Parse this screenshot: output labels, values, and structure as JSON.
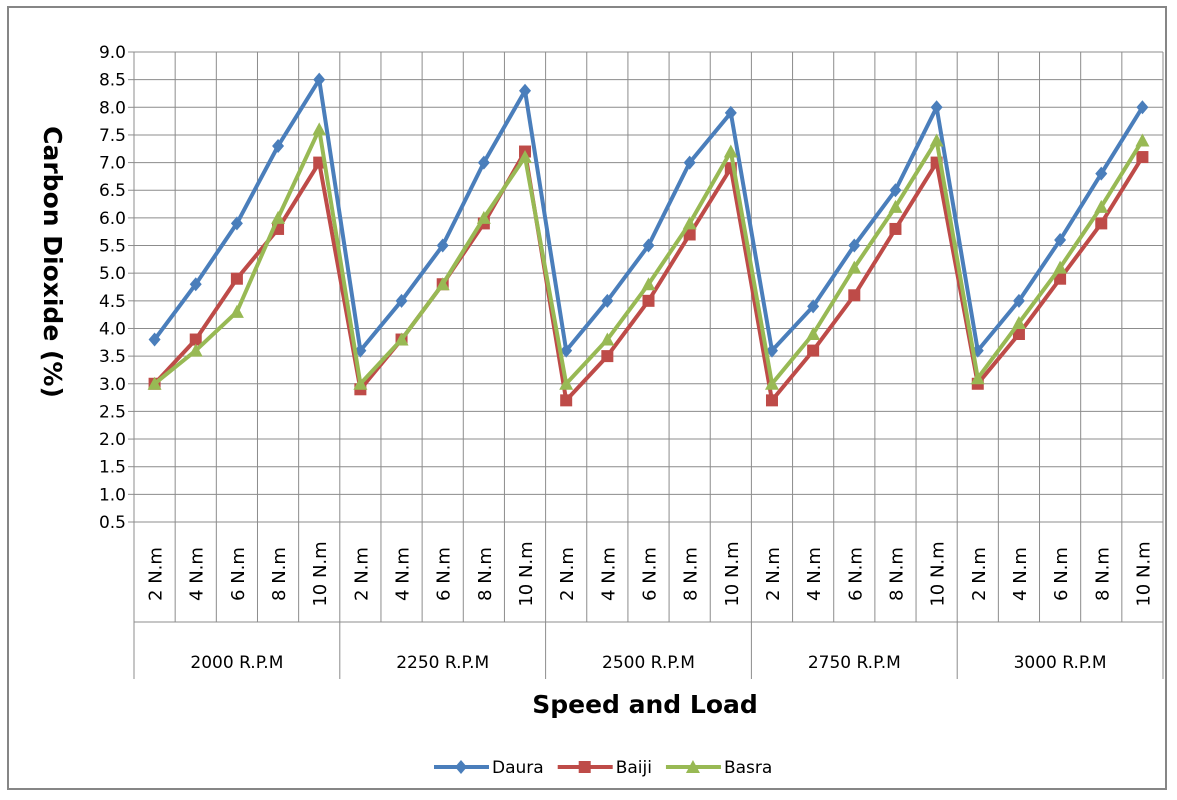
{
  "chart_data": {
    "type": "line",
    "xlabel": "Speed and Load",
    "ylabel": "Carbon Dioxide  (%)",
    "ylim": [
      0.5,
      9.0
    ],
    "ytick_step": 0.5,
    "grid": true,
    "legend_position": "bottom",
    "groups": [
      {
        "label": "2000 R.P.M",
        "categories": [
          "2 N.m",
          "4 N.m",
          "6 N.m",
          "8 N.m",
          "10 N.m"
        ]
      },
      {
        "label": "2250 R.P.M",
        "categories": [
          "2 N.m",
          "4 N.m",
          "6 N.m",
          "8 N.m",
          "10 N.m"
        ]
      },
      {
        "label": "2500 R.P.M",
        "categories": [
          "2 N.m",
          "4 N.m",
          "6 N.m",
          "8 N.m",
          "10 N.m"
        ]
      },
      {
        "label": "2750 R.P.M",
        "categories": [
          "2 N.m",
          "4 N.m",
          "6 N.m",
          "8 N.m",
          "10 N.m"
        ]
      },
      {
        "label": "3000 R.P.M",
        "categories": [
          "2 N.m",
          "4 N.m",
          "6 N.m",
          "8 N.m",
          "10 N.m"
        ]
      }
    ],
    "series": [
      {
        "name": "Daura",
        "color": "#4A7EBB",
        "marker": "diamond",
        "values": [
          3.8,
          4.8,
          5.9,
          7.3,
          8.5,
          3.6,
          4.5,
          5.5,
          7.0,
          8.3,
          3.6,
          4.5,
          5.5,
          7.0,
          7.9,
          3.6,
          4.4,
          5.5,
          6.5,
          8.0,
          3.6,
          4.5,
          5.6,
          6.8,
          8.0
        ]
      },
      {
        "name": "Baiji",
        "color": "#BE4B48",
        "marker": "square",
        "values": [
          3.0,
          3.8,
          4.9,
          5.8,
          7.0,
          2.9,
          3.8,
          4.8,
          5.9,
          7.2,
          2.7,
          3.5,
          4.5,
          5.7,
          6.9,
          2.7,
          3.6,
          4.6,
          5.8,
          7.0,
          3.0,
          3.9,
          4.9,
          5.9,
          7.1
        ]
      },
      {
        "name": "Basra",
        "color": "#98B954",
        "marker": "triangle",
        "values": [
          3.0,
          3.6,
          4.3,
          6.0,
          7.6,
          3.0,
          3.8,
          4.8,
          6.0,
          7.1,
          3.0,
          3.8,
          4.8,
          5.9,
          7.2,
          3.0,
          3.9,
          5.1,
          6.2,
          7.4,
          3.1,
          4.1,
          5.1,
          6.2,
          7.4
        ]
      }
    ]
  }
}
